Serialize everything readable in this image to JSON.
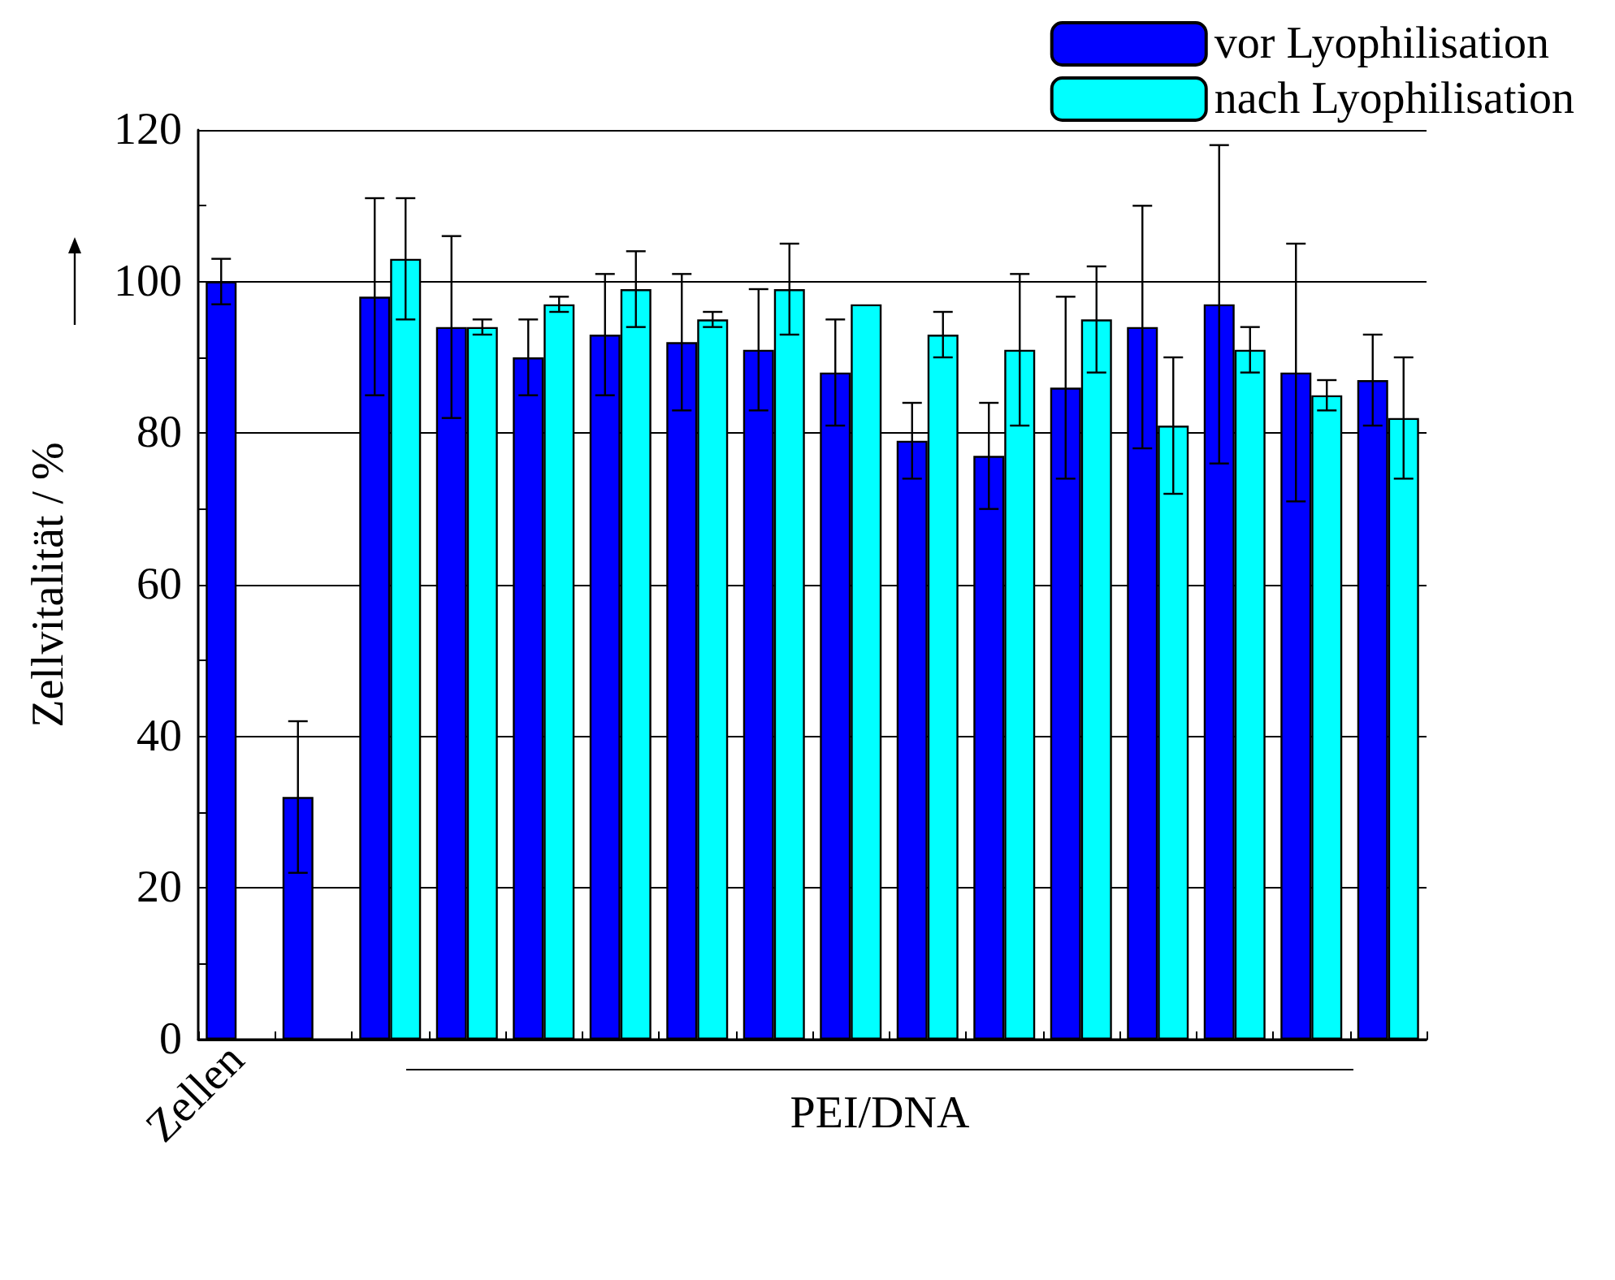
{
  "chart_data": {
    "type": "bar",
    "ylabel": "Zellvitalität / %",
    "annotations": [
      "PEI/DNA"
    ],
    "categories": [
      "Zellen",
      null,
      null,
      null,
      null,
      null,
      null,
      null,
      null,
      null,
      null,
      null,
      null,
      null,
      null,
      null
    ],
    "series": [
      {
        "name": "vor Lyophilisation",
        "color": "#0000ff",
        "values": [
          100,
          32,
          98,
          94,
          90,
          93,
          92,
          91,
          88,
          79,
          77,
          86,
          94,
          97,
          88,
          87
        ],
        "errors": [
          3,
          10,
          13,
          12,
          5,
          8,
          9,
          8,
          7,
          5,
          7,
          12,
          16,
          21,
          17,
          6
        ]
      },
      {
        "name": "nach Lyophilisation",
        "color": "#00ffff",
        "values": [
          null,
          null,
          103,
          94,
          97,
          99,
          95,
          99,
          97,
          93,
          91,
          95,
          81,
          91,
          85,
          82
        ],
        "errors": [
          null,
          null,
          8,
          1,
          1,
          5,
          1,
          6,
          null,
          3,
          10,
          7,
          9,
          3,
          2,
          8
        ]
      }
    ],
    "ylim": [
      0,
      120
    ],
    "yticks": [
      0,
      20,
      40,
      60,
      80,
      100,
      120
    ],
    "grid": "y",
    "legend": "top right"
  }
}
